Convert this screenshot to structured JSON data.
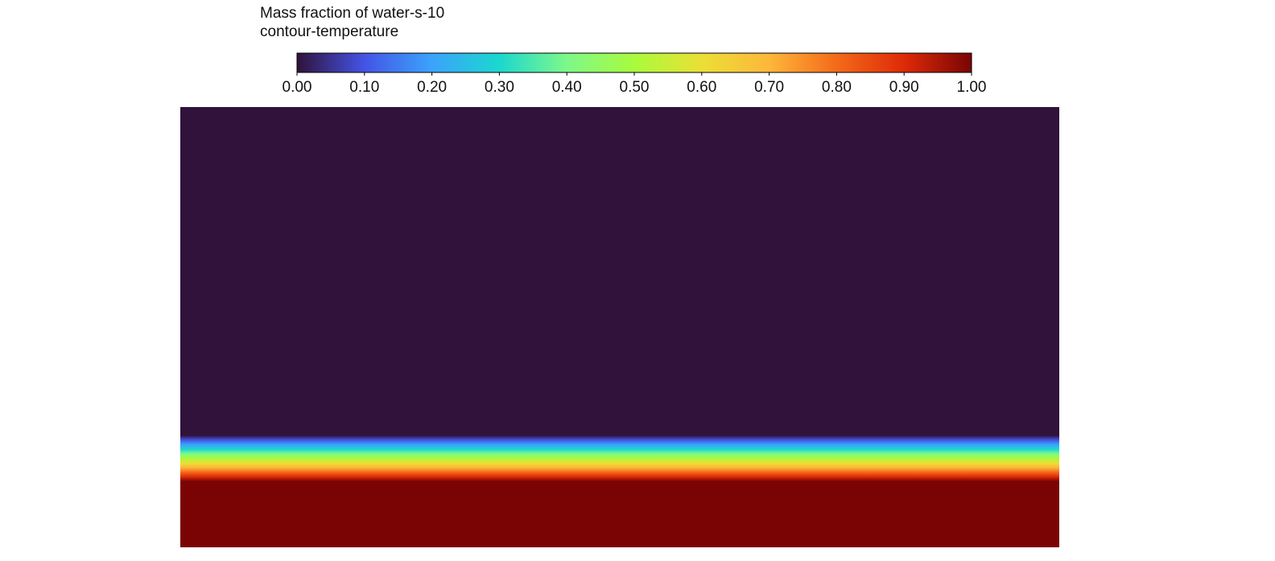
{
  "chart_data": {
    "type": "contour",
    "title": "Mass fraction of water-s-10",
    "subtitle": "contour-temperature",
    "clim": [
      0,
      1
    ],
    "cticks": [
      {
        "value": 0,
        "label": "0.00"
      },
      {
        "value": 0.1,
        "label": "0.10"
      },
      {
        "value": 0.2,
        "label": "0.20"
      },
      {
        "value": 0.3,
        "label": "0.30"
      },
      {
        "value": 0.4,
        "label": "0.40"
      },
      {
        "value": 0.5,
        "label": "0.50"
      },
      {
        "value": 0.6,
        "label": "0.60"
      },
      {
        "value": 0.7,
        "label": "0.70"
      },
      {
        "value": 0.8,
        "label": "0.80"
      },
      {
        "value": 0.9,
        "label": "0.90"
      },
      {
        "value": 1,
        "label": "1.00"
      }
    ],
    "colormap": [
      "#30123b",
      "#4454e6",
      "#3ba3fc",
      "#1bd7cf",
      "#7ef88a",
      "#a9fb3c",
      "#ebdf36",
      "#fdb73a",
      "#f46a1a",
      "#de2a08",
      "#7a0403"
    ]
  }
}
